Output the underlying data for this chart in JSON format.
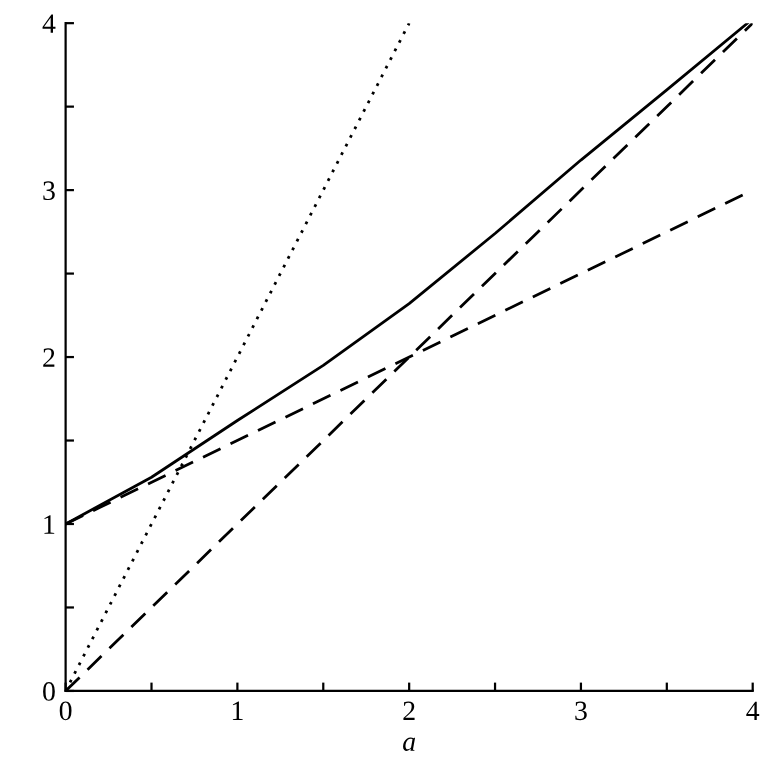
{
  "chart_data": {
    "type": "line",
    "xlabel": "a",
    "xlim": [
      0,
      4
    ],
    "ylim": [
      0,
      4
    ],
    "xticks": [
      0,
      {
        "value": 0.5,
        "label": null
      },
      1,
      {
        "value": 1.5,
        "label": null
      },
      2,
      {
        "value": 2.5,
        "label": null
      },
      3,
      {
        "value": 3.5,
        "label": null
      },
      4
    ],
    "yticks": [
      0,
      {
        "value": 0.5,
        "label": null
      },
      1,
      {
        "value": 1.5,
        "label": null
      },
      2,
      {
        "value": 2.5,
        "label": null
      },
      3,
      {
        "value": 3.5,
        "label": null
      },
      4
    ],
    "grid": false,
    "legend": false,
    "marker": "none",
    "series": [
      {
        "color": "#000000",
        "line_style": "solid",
        "x": [
          0,
          0.5,
          1,
          1.5,
          2,
          2.5,
          3,
          3.5,
          3.97
        ],
        "values": [
          1,
          1.28,
          1.62,
          1.95,
          2.32,
          2.74,
          3.18,
          3.6,
          4
        ]
      },
      {
        "color": "#000000",
        "line_style": "dashed",
        "x": [
          0,
          4
        ],
        "values": [
          1,
          3
        ]
      },
      {
        "color": "#000000",
        "line_style": "dashed",
        "x": [
          0,
          4
        ],
        "values": [
          0,
          4
        ]
      },
      {
        "color": "#000000",
        "line_style": "dotted",
        "x": [
          0,
          2
        ],
        "values": [
          0,
          4
        ]
      }
    ]
  }
}
